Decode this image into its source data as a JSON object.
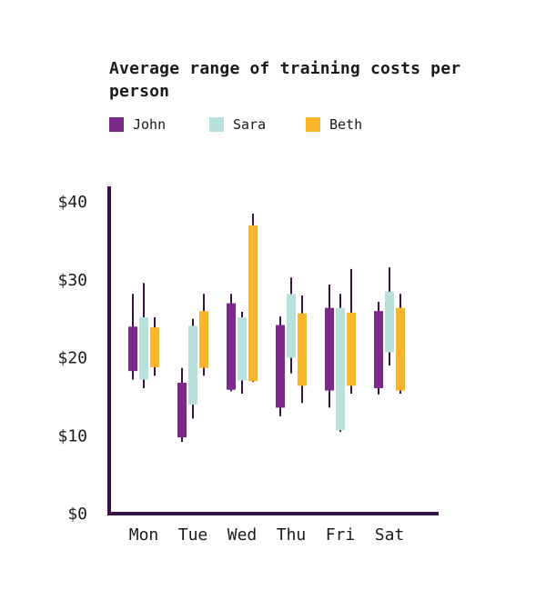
{
  "chart_data": {
    "type": "range-bar (candlestick-style)",
    "title": "Average range of training costs per person",
    "categories": [
      "Mon",
      "Tue",
      "Wed",
      "Thu",
      "Fri",
      "Sat"
    ],
    "y_tick_labels": [
      "$0",
      "$10",
      "$20",
      "$30",
      "$40"
    ],
    "y_ticks": [
      0,
      10,
      20,
      30,
      40
    ],
    "ylim": [
      0,
      42
    ],
    "grid": false,
    "legend_position": "top-left",
    "series": [
      {
        "name": "John",
        "color": "#7b2a8c",
        "points": [
          {
            "low": 17.2,
            "q1": 18.3,
            "q3": 24.0,
            "high": 28.2
          },
          {
            "low": 9.2,
            "q1": 9.8,
            "q3": 16.8,
            "high": 18.7
          },
          {
            "low": 15.7,
            "q1": 15.9,
            "q3": 27.0,
            "high": 28.2
          },
          {
            "low": 12.5,
            "q1": 13.6,
            "q3": 24.2,
            "high": 25.3
          },
          {
            "low": 13.6,
            "q1": 15.8,
            "q3": 26.4,
            "high": 29.4
          },
          {
            "low": 15.3,
            "q1": 16.1,
            "q3": 26.0,
            "high": 27.2
          }
        ]
      },
      {
        "name": "Sara",
        "color": "#b7e1da",
        "points": [
          {
            "low": 16.1,
            "q1": 17.2,
            "q3": 25.2,
            "high": 29.6
          },
          {
            "low": 12.2,
            "q1": 14.0,
            "q3": 24.1,
            "high": 25.0
          },
          {
            "low": 15.4,
            "q1": 17.1,
            "q3": 25.2,
            "high": 25.9
          },
          {
            "low": 18.0,
            "q1": 20.0,
            "q3": 28.2,
            "high": 30.3
          },
          {
            "low": 10.5,
            "q1": 10.7,
            "q3": 26.4,
            "high": 28.2
          },
          {
            "low": 19.0,
            "q1": 20.7,
            "q3": 28.5,
            "high": 31.6
          }
        ]
      },
      {
        "name": "Beth",
        "color": "#fbb52b",
        "points": [
          {
            "low": 17.7,
            "q1": 18.8,
            "q3": 23.9,
            "high": 25.2
          },
          {
            "low": 17.7,
            "q1": 18.7,
            "q3": 26.0,
            "high": 28.2
          },
          {
            "low": 16.9,
            "q1": 17.0,
            "q3": 37.0,
            "high": 38.5
          },
          {
            "low": 14.2,
            "q1": 16.4,
            "q3": 25.7,
            "high": 28.0
          },
          {
            "low": 15.4,
            "q1": 16.4,
            "q3": 25.8,
            "high": 31.4
          },
          {
            "low": 15.4,
            "q1": 15.8,
            "q3": 26.4,
            "high": 28.2
          }
        ]
      }
    ]
  },
  "colors": {
    "axis": "#3b1446",
    "whisker": "#3b1446"
  }
}
